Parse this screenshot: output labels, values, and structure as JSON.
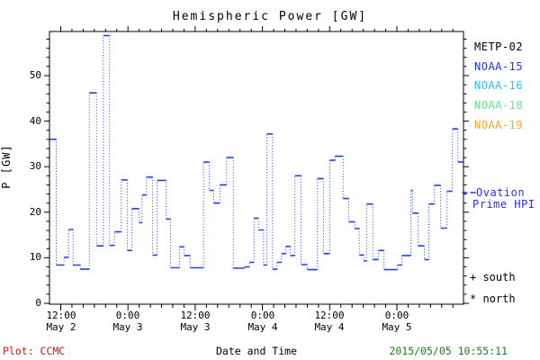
{
  "title": "Hemispheric Power [GW]",
  "axes": {
    "ylabel": "P [GW]",
    "xlabel": "Date and Time",
    "y_ticks": [
      0,
      10,
      20,
      30,
      40,
      50
    ],
    "x_ticks": [
      {
        "time": "12:00",
        "date": "May 2"
      },
      {
        "time": "0:00",
        "date": "May 3"
      },
      {
        "time": "12:00",
        "date": "May 3"
      },
      {
        "time": "0:00",
        "date": "May 4"
      },
      {
        "time": "12:00",
        "date": "May 4"
      },
      {
        "time": "0:00",
        "date": "May 5"
      }
    ]
  },
  "legend": {
    "satellites": [
      {
        "label": "METP-02",
        "color": "#000000"
      },
      {
        "label": "NOAA-15",
        "color": "#2233ee"
      },
      {
        "label": "NOAA-16",
        "color": "#33bbff"
      },
      {
        "label": "NOAA-18",
        "color": "#5ce68f"
      },
      {
        "label": "NOAA-19",
        "color": "#ffa522"
      }
    ],
    "model": {
      "line1": "Ovation",
      "line2": "Prime HPI",
      "color": "#2233ee"
    },
    "markers": [
      {
        "text": "+ south"
      },
      {
        "text": "* north"
      }
    ]
  },
  "footer": {
    "left": "Plot: CCMC",
    "left_color": "#bb2211",
    "right": "2015/05/05 10:55:11",
    "right_color": "#1e7a1e"
  },
  "chart_data": {
    "type": "line",
    "subtype": "step-post",
    "line_style": "horizontal solid, vertical connectors dotted",
    "color": "#2040ee",
    "title": "Hemispheric Power [GW]",
    "xlabel": "Date and Time",
    "ylabel": "P [GW]",
    "ylim": [
      0,
      60
    ],
    "grid": false,
    "x_axis_unit": "hours since 2015-05-02 00:00 UT",
    "x_range_hours": [
      9.9,
      83.9
    ],
    "x_tick_hours": [
      12,
      24,
      36,
      48,
      60,
      72
    ],
    "x_minor_tick_step_hours": 2,
    "y_minor_tick_step": 2,
    "series": [
      {
        "name": "Ovation Prime HPI",
        "steps": [
          [
            9.9,
            36.0
          ],
          [
            11.2,
            8.4
          ],
          [
            12.6,
            10.1
          ],
          [
            13.4,
            16.2
          ],
          [
            14.2,
            8.4
          ],
          [
            15.5,
            7.5
          ],
          [
            17.1,
            46.2
          ],
          [
            18.4,
            12.6
          ],
          [
            19.6,
            58.8
          ],
          [
            20.7,
            12.7
          ],
          [
            21.6,
            15.7
          ],
          [
            22.8,
            27.1
          ],
          [
            23.9,
            11.6
          ],
          [
            24.7,
            20.8
          ],
          [
            26.0,
            17.7
          ],
          [
            26.5,
            23.8
          ],
          [
            27.3,
            27.7
          ],
          [
            28.4,
            10.6
          ],
          [
            29.2,
            27.0
          ],
          [
            30.8,
            18.5
          ],
          [
            31.6,
            7.8
          ],
          [
            33.2,
            12.4
          ],
          [
            34.0,
            10.5
          ],
          [
            35.1,
            7.8
          ],
          [
            37.5,
            31.0
          ],
          [
            38.5,
            24.8
          ],
          [
            39.3,
            22.0
          ],
          [
            40.4,
            26.0
          ],
          [
            41.6,
            32.0
          ],
          [
            42.8,
            7.7
          ],
          [
            44.8,
            8.0
          ],
          [
            45.7,
            9.0
          ],
          [
            46.5,
            18.7
          ],
          [
            47.3,
            16.1
          ],
          [
            48.2,
            8.4
          ],
          [
            48.8,
            37.2
          ],
          [
            49.8,
            7.5
          ],
          [
            50.6,
            9.0
          ],
          [
            51.4,
            10.9
          ],
          [
            52.2,
            12.5
          ],
          [
            53.0,
            10.5
          ],
          [
            53.8,
            28.0
          ],
          [
            54.9,
            8.5
          ],
          [
            56.0,
            7.4
          ],
          [
            57.8,
            27.4
          ],
          [
            58.9,
            10.9
          ],
          [
            60.0,
            31.4
          ],
          [
            61.0,
            32.3
          ],
          [
            62.4,
            23.0
          ],
          [
            63.4,
            17.9
          ],
          [
            64.5,
            16.4
          ],
          [
            65.3,
            10.6
          ],
          [
            66.1,
            9.3
          ],
          [
            66.6,
            21.8
          ],
          [
            67.7,
            9.6
          ],
          [
            68.7,
            11.6
          ],
          [
            69.7,
            7.4
          ],
          [
            72.1,
            8.4
          ],
          [
            72.9,
            10.5
          ],
          [
            74.5,
            24.8
          ],
          [
            74.8,
            19.8
          ],
          [
            75.8,
            12.6
          ],
          [
            76.9,
            9.6
          ],
          [
            77.7,
            21.8
          ],
          [
            78.7,
            25.9
          ],
          [
            79.8,
            16.5
          ],
          [
            80.9,
            24.6
          ],
          [
            81.9,
            38.3
          ],
          [
            82.9,
            31.0
          ]
        ],
        "end_hour": 83.9
      }
    ],
    "legend_position": "right"
  }
}
